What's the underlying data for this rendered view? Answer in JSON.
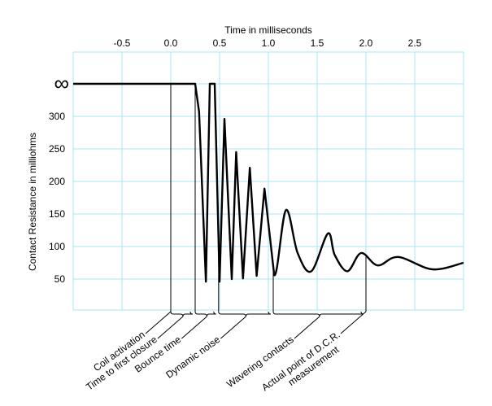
{
  "chart_data": {
    "type": "line",
    "xlabel": "Time in milliseconds",
    "ylabel": "Contact Resistance in milliohms",
    "xlim": [
      -1.0,
      3.0
    ],
    "ylim": [
      0,
      400
    ],
    "x_ticks": [
      {
        "value": -0.5,
        "label": "-0.5"
      },
      {
        "value": 0.0,
        "label": "0.0"
      },
      {
        "value": 0.5,
        "label": "0.5"
      },
      {
        "value": 1.0,
        "label": "1.0"
      },
      {
        "value": 1.5,
        "label": "1.5"
      },
      {
        "value": 2.0,
        "label": "2.0"
      },
      {
        "value": 2.5,
        "label": "2.5"
      }
    ],
    "y_ticks": [
      {
        "value": "∞",
        "label": "∞"
      },
      {
        "value": 300,
        "label": "300"
      },
      {
        "value": 250,
        "label": "250"
      },
      {
        "value": 200,
        "label": "200"
      },
      {
        "value": 150,
        "label": "150"
      },
      {
        "value": 100,
        "label": "100"
      },
      {
        "value": 50,
        "label": "50"
      }
    ],
    "grid": true,
    "grid_color": "#a8e4f5",
    "line_color": "#000000",
    "series": [
      {
        "x": [
          -1.0,
          0.25,
          0.29,
          0.36,
          0.4,
          0.45,
          0.5,
          0.55,
          0.625,
          0.67,
          0.74,
          0.81,
          0.88,
          0.96,
          1.06,
          1.18,
          1.3,
          1.44,
          1.61,
          1.68,
          1.81,
          1.95,
          2.12,
          2.33,
          2.68,
          3.0
        ],
        "y": [
          "∞",
          "∞",
          307,
          46,
          "∞",
          "∞",
          46,
          296,
          50,
          245,
          51,
          221,
          55,
          189,
          56,
          156,
          90,
          62,
          120,
          87,
          62,
          90,
          71,
          84,
          65,
          75
        ]
      }
    ],
    "annotations": [
      {
        "label": "Coil activation",
        "from": 0.0,
        "to": 0.0
      },
      {
        "label": "Time to first closure",
        "from": 0.0,
        "to": 0.25
      },
      {
        "label": "Bounce time",
        "from": 0.25,
        "to": 0.49
      },
      {
        "label": "Dynamic noise",
        "from": 0.49,
        "to": 1.05
      },
      {
        "label": "Wavering contacts",
        "from": 1.05,
        "to": 2.0
      },
      {
        "label": "Actual point of D.C.R.",
        "label2": "measurement",
        "from": 2.0,
        "to": 2.0
      }
    ]
  }
}
